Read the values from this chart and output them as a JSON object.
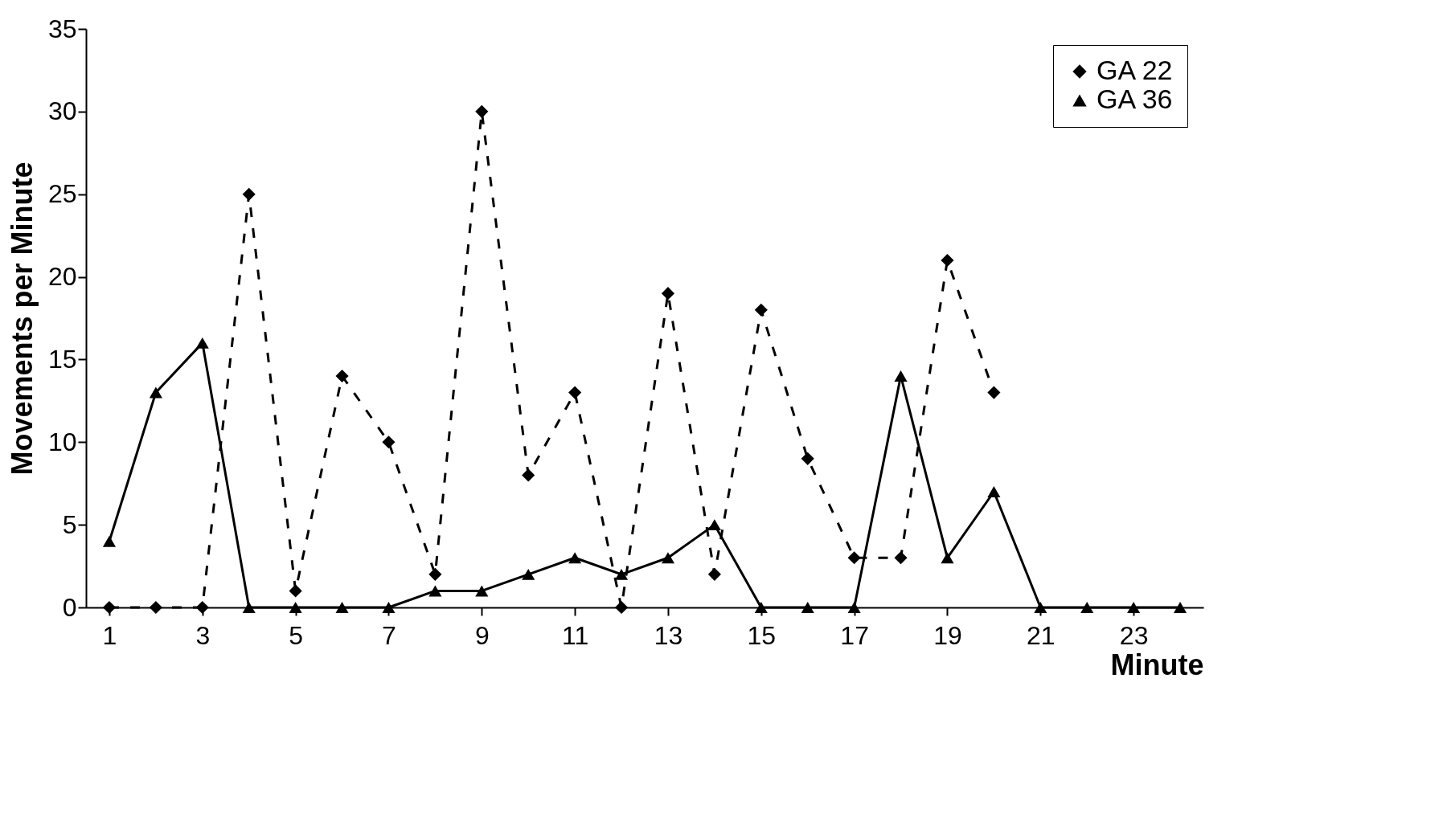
{
  "chart_data": {
    "type": "line",
    "xlabel": "Minute",
    "ylabel": "Movements per Minute",
    "x": [
      1,
      2,
      3,
      4,
      5,
      6,
      7,
      8,
      9,
      10,
      11,
      12,
      13,
      14,
      15,
      16,
      17,
      18,
      19,
      20,
      21,
      22,
      23,
      24
    ],
    "series": [
      {
        "name": "GA 22",
        "color": "#000000",
        "line_style": "dashed",
        "marker": "diamond",
        "values": [
          0,
          0,
          0,
          25,
          1,
          14,
          10,
          2,
          30,
          8,
          13,
          0,
          19,
          2,
          18,
          9,
          3,
          3,
          21,
          13,
          null,
          null,
          null,
          null
        ]
      },
      {
        "name": "GA 36",
        "color": "#000000",
        "line_style": "solid",
        "marker": "triangle",
        "values": [
          4,
          13,
          16,
          0,
          0,
          0,
          0,
          1,
          1,
          2,
          3,
          2,
          3,
          5,
          0,
          0,
          0,
          14,
          3,
          7,
          0,
          0,
          0,
          0
        ]
      }
    ],
    "xlim": [
      0.5,
      24.5
    ],
    "xticks": [
      1,
      3,
      5,
      7,
      9,
      11,
      13,
      15,
      17,
      19,
      21,
      23
    ],
    "ylim": [
      0,
      35
    ],
    "yticks": [
      0,
      5,
      10,
      15,
      20,
      25,
      30,
      35
    ],
    "grid": false,
    "legend": "top right"
  }
}
